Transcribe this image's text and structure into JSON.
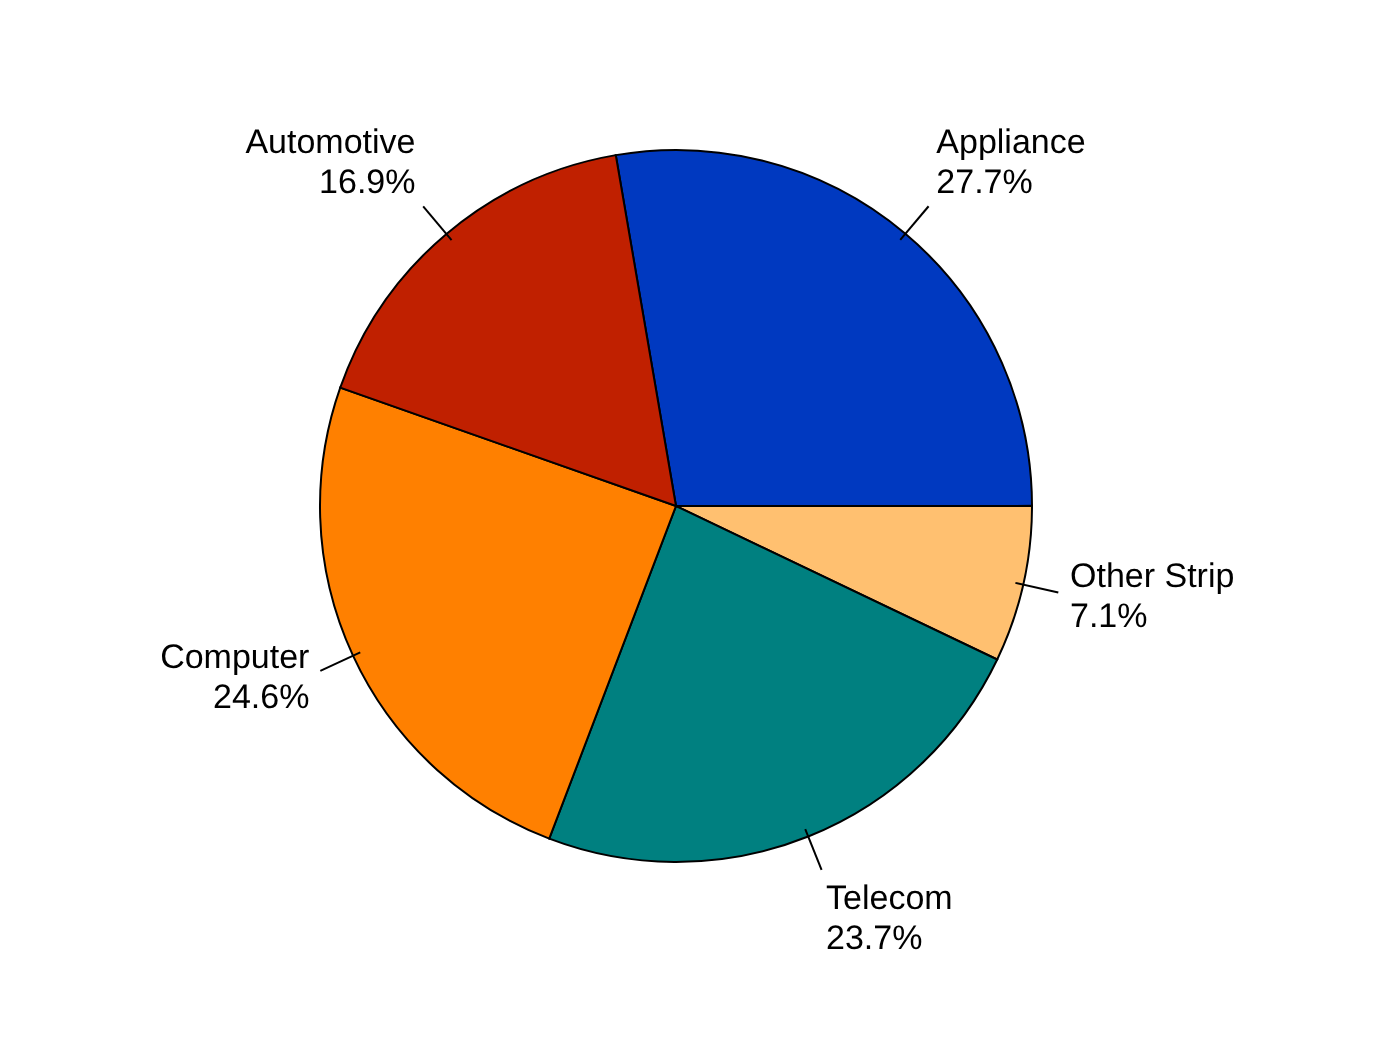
{
  "chart_data": {
    "type": "pie",
    "categories": [
      "Appliance",
      "Other Strip",
      "Telecom",
      "Computer",
      "Automotive"
    ],
    "values": [
      27.7,
      7.1,
      23.7,
      24.6,
      16.9
    ],
    "value_labels": [
      "27.7%",
      "7.1%",
      "23.7%",
      "24.6%",
      "16.9%"
    ],
    "colors": [
      "#0039c0",
      "#ffc070",
      "#008080",
      "#ff8000",
      "#c02000"
    ]
  }
}
